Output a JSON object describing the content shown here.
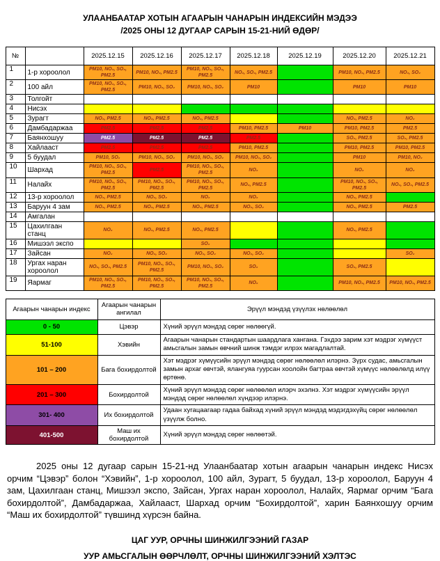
{
  "title": {
    "line1": "УЛААНБААТАР ХОТЫН АГААРЫН ЧАНАРЫН ИНДЕКСИЙН МЭДЭЭ",
    "line2": "/2025 ОНЫ 12 ДУГААР САРЫН 15-21-НИЙ ӨДӨР/"
  },
  "colors": {
    "green": "#00E400",
    "yellow": "#FFFF00",
    "orange": "#FFA321",
    "red": "#FF0000",
    "purple": "#8E4CA6",
    "maroon": "#7D1230",
    "white": "#FFFFFF",
    "cell_text": "#8B2E16"
  },
  "main_table": {
    "headers": {
      "num": "№",
      "name": "",
      "dates": [
        "2025.12.15",
        "2025.12.16",
        "2025.12.17",
        "2025.12.18",
        "2025.12.19",
        "2025.12.20",
        "2025.12.21"
      ]
    },
    "rows": [
      {
        "num": "1",
        "name": "1-р хороолол",
        "values": [
          "PM10, NO₂, SO₂, PM2.5",
          "PM10, NO₂, PM2.5",
          "PM10, NO₂, SO₂, PM2.5",
          "NO₂, SO₂, PM2.5",
          "",
          "PM10, NO₂, PM2.5",
          "NO₂, SO₂"
        ],
        "colors": [
          "orange",
          "orange",
          "orange",
          "orange",
          "green",
          "orange",
          "orange"
        ]
      },
      {
        "num": "2",
        "name": "100 айл",
        "values": [
          "PM10, NO₂, SO₂, PM2.5",
          "PM10, NO₂, SO₂",
          "PM10, NO₂, SO₂",
          "PM10",
          "",
          "PM10",
          "PM10"
        ],
        "colors": [
          "orange",
          "orange",
          "orange",
          "orange",
          "green",
          "orange",
          "orange"
        ]
      },
      {
        "num": "3",
        "name": "Толгойт",
        "values": [
          "",
          "",
          "",
          "",
          "",
          "",
          ""
        ],
        "colors": [
          "white",
          "white",
          "white",
          "white",
          "white",
          "white",
          "white"
        ]
      },
      {
        "num": "4",
        "name": "Нисэх",
        "values": [
          "",
          "",
          "",
          "",
          "",
          "",
          ""
        ],
        "colors": [
          "yellow",
          "yellow",
          "green",
          "green",
          "green",
          "yellow",
          "yellow"
        ]
      },
      {
        "num": "5",
        "name": "Зурагт",
        "values": [
          "NO₂, PM2.5",
          "NO₂, PM2.5",
          "NO₂, PM2.5",
          "",
          "",
          "NO₂, PM2.5",
          "NO₂"
        ],
        "colors": [
          "orange",
          "orange",
          "orange",
          "yellow",
          "green",
          "orange",
          "orange"
        ]
      },
      {
        "num": "6",
        "name": "Дамбадаржаа",
        "values": [
          "PM2.5",
          "PM2.5",
          "PM2.5",
          "PM10, PM2.5",
          "PM10",
          "PM10, PM2.5",
          "PM2.5"
        ],
        "colors": [
          "red",
          "red",
          "red",
          "orange",
          "orange",
          "orange",
          "orange"
        ]
      },
      {
        "num": "7",
        "name": "Баянхошуу",
        "values": [
          "PM2.5",
          "PM2.5",
          "PM2.5",
          "PM2.5",
          "",
          "SO₂, PM2.5",
          "SO₂, PM2.5"
        ],
        "colors": [
          "purple",
          "maroon",
          "maroon",
          "red",
          "green",
          "orange",
          "orange"
        ]
      },
      {
        "num": "8",
        "name": "Хайлааст",
        "values": [
          "PM2.5",
          "PM2.5",
          "PM2.5",
          "PM10, PM2.5",
          "",
          "PM10, PM2.5",
          "PM10, PM2.5"
        ],
        "colors": [
          "red",
          "red",
          "red",
          "orange",
          "green",
          "orange",
          "orange"
        ]
      },
      {
        "num": "9",
        "name": "5 буудал",
        "values": [
          "PM10, SO₂",
          "PM10, NO₂, SO₂",
          "PM10, NO₂, SO₂",
          "PM10, NO₂, SO₂",
          "",
          "PM10",
          "PM10, NO₂"
        ],
        "colors": [
          "orange",
          "orange",
          "orange",
          "orange",
          "green",
          "orange",
          "orange"
        ]
      },
      {
        "num": "10",
        "name": "Шархад",
        "values": [
          "PM10, NO₂, SO₂, PM2.5",
          "PM2.5",
          "PM10, NO₂, SO₂, PM2.5",
          "NO₂",
          "",
          "NO₂",
          "NO₂"
        ],
        "colors": [
          "orange",
          "red",
          "orange",
          "orange",
          "green",
          "orange",
          "orange"
        ]
      },
      {
        "num": "11",
        "name": "Налайх",
        "values": [
          "PM10, NO₂, SO₂, PM2.5",
          "PM10, NO₂, SO₂, PM2.5",
          "PM10, NO₂, SO₂, PM2.5",
          "NO₂, PM2.5",
          "",
          "PM10, NO₂, SO₂, PM2.5",
          "NO₂, SO₂, PM2.5"
        ],
        "colors": [
          "orange",
          "orange",
          "orange",
          "orange",
          "green",
          "orange",
          "orange"
        ]
      },
      {
        "num": "12",
        "name": "13-р хороолол",
        "values": [
          "NO₂, PM2.5",
          "NO₂, SO₂",
          "NO₂",
          "NO₂",
          "",
          "NO₂, PM2.5",
          ""
        ],
        "colors": [
          "orange",
          "orange",
          "orange",
          "orange",
          "green",
          "orange",
          "green"
        ]
      },
      {
        "num": "13",
        "name": "Баруун 4 зам",
        "values": [
          "NO₂, PM2.5",
          "NO₂, PM2.5",
          "NO₂, PM2.5",
          "NO₂, SO₂",
          "",
          "NO₂, PM2.5",
          "PM2.5"
        ],
        "colors": [
          "orange",
          "orange",
          "orange",
          "orange",
          "green",
          "orange",
          "orange"
        ]
      },
      {
        "num": "14",
        "name": "Амгалан",
        "values": [
          "",
          "",
          "",
          "",
          "",
          "",
          ""
        ],
        "colors": [
          "white",
          "white",
          "white",
          "white",
          "white",
          "white",
          "white"
        ]
      },
      {
        "num": "15",
        "name": "Цахилгаан станц",
        "values": [
          "NO₂",
          "NO₂, PM2.5",
          "NO₂, PM2.5",
          "",
          "",
          "NO₂, PM2.5",
          ""
        ],
        "colors": [
          "orange",
          "orange",
          "orange",
          "yellow",
          "green",
          "orange",
          "green"
        ]
      },
      {
        "num": "16",
        "name": "Мишээл экспо",
        "values": [
          "",
          "",
          "SO₂",
          "",
          "",
          "",
          ""
        ],
        "colors": [
          "yellow",
          "yellow",
          "orange",
          "green",
          "green",
          "yellow",
          "green"
        ]
      },
      {
        "num": "17",
        "name": "Зайсан",
        "values": [
          "NO₂",
          "NO₂, SO₂",
          "NO₂, SO₂",
          "NO₂, SO₂",
          "",
          "",
          "SO₂"
        ],
        "colors": [
          "orange",
          "orange",
          "orange",
          "orange",
          "green",
          "yellow",
          "orange"
        ]
      },
      {
        "num": "18",
        "name": "Ургах наран хороолол",
        "values": [
          "NO₂, SO₂, PM2.5",
          "PM10, NO₂, SO₂, PM2.5",
          "PM10, NO₂, SO₂",
          "SO₂",
          "",
          "SO₂, PM2.5",
          ""
        ],
        "colors": [
          "orange",
          "orange",
          "orange",
          "orange",
          "green",
          "orange",
          "yellow"
        ]
      },
      {
        "num": "19",
        "name": "Яармаг",
        "values": [
          "PM10, NO₂, SO₂, PM2.5",
          "PM10, NO₂, SO₂, PM2.5",
          "PM10, NO₂, SO₂, PM2.5",
          "NO₂",
          "",
          "PM10, NO₂, PM2.5",
          "PM10, NO₂, PM2.5"
        ],
        "colors": [
          "orange",
          "orange",
          "orange",
          "orange",
          "green",
          "orange",
          "orange"
        ]
      }
    ]
  },
  "legend_table": {
    "headers": [
      "Агаарын чанарын индекс",
      "Агаарын чанарын ангилал",
      "Эрүүл мэндэд үзүүлэх нөлөөлөл"
    ],
    "rows": [
      {
        "range": "0 - 50",
        "category": "Цэвэр",
        "effect": "Хүний эрүүл мэндэд сөрөг нөлөөгүй.",
        "color": "green",
        "range_text": "black"
      },
      {
        "range": "51-100",
        "category": "Хэвийн",
        "effect": "Агаарын чанарын стандартын шаардлага хангана. Гэхдээ зарим хэт мэдрэг хүмүүст  амьсгалын замын өвчний шинж тэмдэг илрэх магадлалтай.",
        "color": "yellow",
        "range_text": "black"
      },
      {
        "range": "101 – 200",
        "category": "Бага бохирдолтой",
        "effect": "Хэт мэдрэг хүмүүсийн эрүүл мэндэд  сөрөг нөлөөлөл илэрнэ. Зүрх судас, амьсгалын замын архаг өвчтэй, ялангуяа гуурсан хоолойн багтраа өвчтэй хүмүүс нөлөөлөлд илүү өртөнө.",
        "color": "orange",
        "range_text": "black"
      },
      {
        "range": "201 – 300",
        "category": "Бохирдолтой",
        "effect": "Хүний эрүүл мэндэд сөрөг нөлөөлөл илэрч эхэлнэ. Хэт мэдрэг хүмүүсийн эрүүл мэндэд сөрөг нөлөөлөл хүндээр илэрнэ.",
        "color": "red",
        "range_text": "black"
      },
      {
        "range": "301- 400",
        "category": "Их бохирдолтой",
        "effect": "Удаан хугацаагаар гадаа байхад хүний эрүүл мэндэд мэдэгдэхүйц сөрөг нөлөөлөл үзүүлж болно.",
        "color": "purple",
        "range_text": "black"
      },
      {
        "range": "401-500",
        "category": "Маш их бохирдолтой",
        "effect": "Хүний эрүүл мэндэд сөрөг нөлөөтэй.",
        "color": "maroon",
        "range_text": "white"
      }
    ]
  },
  "paragraph": "2025 оны 12 дугаар сарын 15-21-нд Улаанбаатар хотын агаарын чанарын индекс Нисэх орчим “Цэвэр” болон “Хэвийн”, 1-р хороолол, 100 айл, Зурагт, 5 буудал, 13-р хороолол, Баруун 4 зам, Цахилгаан станц, Мишээл экспо, Зайсан, Ургах наран хороолол, Налайх, Яармаг орчим “Бага бохирдолтой”, Дамбадаржаа, Хайлааст, Шархад орчим “Бохирдолтой”, харин Баянхошуу орчим “Маш их бохирдолтой” түвшинд хүрсэн байна.",
  "footer": {
    "line1": "ЦАГ УУР, ОРЧНЫ ШИНЖИЛГЭЭНИЙ ГАЗАР",
    "line2": "УУР АМЬСГАЛЫН ӨӨРЧЛӨЛТ, ОРЧНЫ ШИНЖИЛГЭЭНИЙ ХЭЛТЭС"
  }
}
